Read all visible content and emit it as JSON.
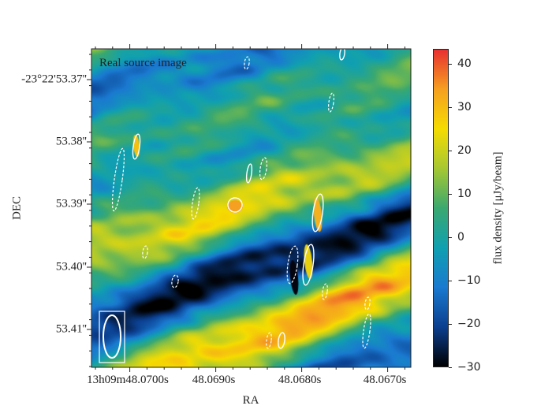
{
  "chart_data": {
    "type": "heatmap",
    "title": "Real source image",
    "xlabel": "RA",
    "ylabel": "DEC",
    "x_ticks": [
      "13h09m48.0700s",
      "48.0690s",
      "48.0680s",
      "48.0670s"
    ],
    "y_ticks": [
      "-23°22'53.37''",
      "53.38''",
      "53.39''",
      "53.40''",
      "53.41''"
    ],
    "colorbar": {
      "label": "flux density [μJy/beam]",
      "range": [
        -30,
        43.5
      ],
      "ticks": [
        "40",
        "30",
        "20",
        "10",
        "0",
        "−10",
        "−20",
        "−30"
      ],
      "colormap_stops": [
        "#000000",
        "#0b3f8f",
        "#1a7ad0",
        "#10a0b0",
        "#3aa870",
        "#a6c832",
        "#f5dc00",
        "#f5a020",
        "#e83030"
      ]
    },
    "contours": {
      "positive": "solid white",
      "negative": "dashed white"
    },
    "beam_ellipse": true
  }
}
